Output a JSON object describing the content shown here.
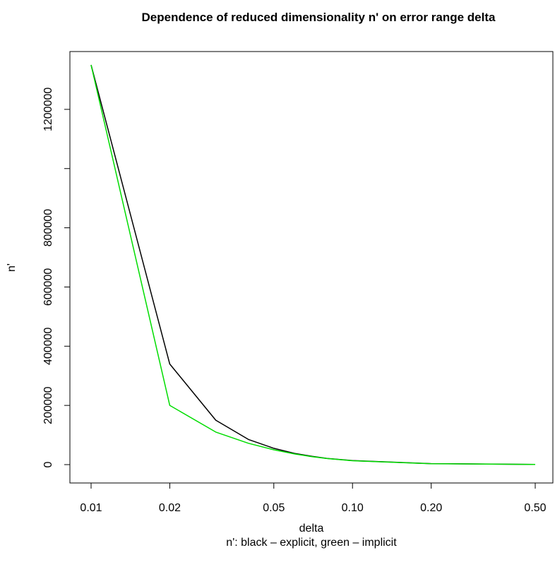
{
  "chart_data": {
    "type": "line",
    "title": "Dependence of reduced dimensionality n' on error range delta",
    "xlabel": "delta",
    "subtitle": "n': black – explicit, green – implicit",
    "ylabel": "n'",
    "x_scale": "log",
    "xlim": [
      0.01,
      0.5
    ],
    "ylim": [
      0,
      1350000
    ],
    "x_ticks": [
      0.01,
      0.02,
      0.05,
      0.1,
      0.2,
      0.5
    ],
    "x_tick_labels": [
      "0.01",
      "0.02",
      "0.05",
      "0.10",
      "0.20",
      "0.50"
    ],
    "y_ticks": [
      0,
      200000,
      400000,
      600000,
      800000,
      1000000,
      1200000
    ],
    "y_tick_labels": [
      "0",
      "200000",
      "400000",
      "600000",
      "800000",
      "",
      "1200000"
    ],
    "grid": false,
    "legend": "none",
    "series": [
      {
        "color": "#000000",
        "x": [
          0.01,
          0.02,
          0.03,
          0.04,
          0.05,
          0.06,
          0.07,
          0.08,
          0.1,
          0.2,
          0.5
        ],
        "y": [
          1350000,
          340000,
          150000,
          85000,
          55000,
          38000,
          28000,
          21000,
          13500,
          3400,
          540
        ]
      },
      {
        "color": "#00dd00",
        "x": [
          0.01,
          0.02,
          0.03,
          0.04,
          0.05,
          0.06,
          0.07,
          0.08,
          0.1,
          0.2,
          0.5
        ],
        "y": [
          1350000,
          200000,
          110000,
          72000,
          50000,
          36000,
          27000,
          20500,
          13000,
          3200,
          500
        ]
      }
    ]
  }
}
